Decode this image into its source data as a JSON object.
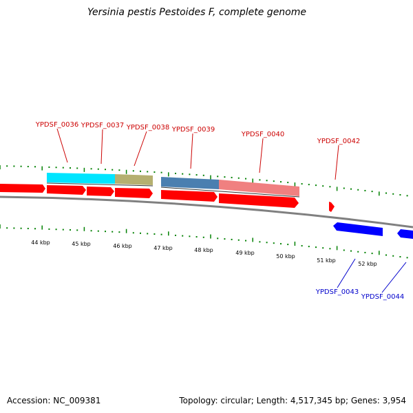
{
  "title": "Yersinia pestis Pestoides F, complete genome",
  "accession": "Accession: NC_009381",
  "summary": "Topology: circular; Length: 4,517,345 bp; Genes: 3,954",
  "colors": {
    "forward_gene": "#ff0000",
    "reverse_gene": "#0000ff",
    "tick": "#008000",
    "backbone": "#808080",
    "label_forward": "#cc0000",
    "label_reverse": "#0000cc",
    "cog_cyan": "#00e5ff",
    "cog_olive": "#b5b070",
    "cog_steelblue": "#4a7fb0",
    "cog_pink": "#f08080"
  },
  "tick_labels": [
    "44 kbp",
    "45 kbp",
    "46 kbp",
    "47 kbp",
    "48 kbp",
    "49 kbp",
    "50 kbp",
    "51 kbp",
    "52 kbp"
  ],
  "gene_labels_forward": [
    "YPDSF_0036",
    "YPDSF_0037",
    "YPDSF_0038",
    "YPDSF_0039",
    "YPDSF_0040",
    "YPDSF_0042"
  ],
  "gene_labels_reverse": [
    "YPDSF_0043",
    "YPDSF_0044"
  ]
}
